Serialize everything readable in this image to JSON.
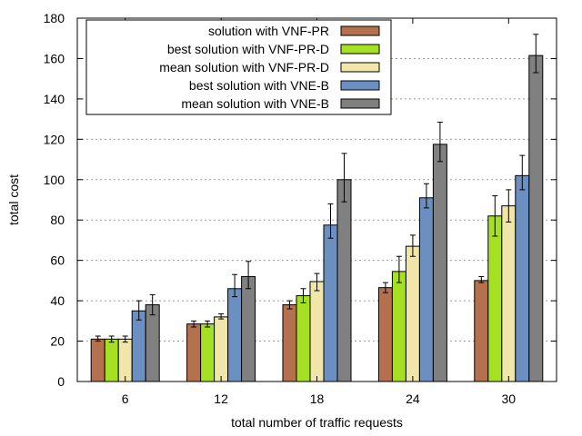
{
  "chart_data": {
    "type": "bar",
    "xlabel": "total number of traffic requests",
    "ylabel": "total cost",
    "ylim": [
      0,
      180
    ],
    "yticks": [
      0,
      20,
      40,
      60,
      80,
      100,
      120,
      140,
      160,
      180
    ],
    "grid": "horizontal dotted",
    "legend_position": "top-left",
    "categories": [
      "6",
      "12",
      "18",
      "24",
      "30"
    ],
    "series": [
      {
        "name": "solution with VNF-PR",
        "color": "#b5714e",
        "values": [
          21,
          28.5,
          38,
          46.5,
          50
        ],
        "error_low": [
          20,
          27,
          36,
          44,
          49
        ],
        "error_high": [
          22.5,
          30,
          40,
          49,
          52
        ]
      },
      {
        "name": "best solution with VNF-PR-D",
        "color": "#a6e022",
        "values": [
          21,
          28.5,
          42.5,
          54.5,
          82
        ],
        "error_low": [
          19.5,
          27,
          39,
          49,
          72
        ],
        "error_high": [
          22.5,
          30,
          46,
          62,
          92
        ]
      },
      {
        "name": "mean solution with VNF-PR-D",
        "color": "#f0e6aa",
        "values": [
          21,
          32,
          49.5,
          67,
          87
        ],
        "error_low": [
          19.5,
          31,
          45,
          62,
          79
        ],
        "error_high": [
          22.5,
          33.5,
          53.5,
          72.5,
          95
        ]
      },
      {
        "name": "best solution with VNE-B",
        "color": "#6a8fc0",
        "values": [
          35,
          46,
          77.5,
          91,
          102
        ],
        "error_low": [
          30.5,
          42,
          71,
          86,
          95
        ],
        "error_high": [
          40,
          53,
          88,
          98,
          112
        ]
      },
      {
        "name": "mean solution with VNE-B",
        "color": "#808080",
        "values": [
          38,
          52,
          100,
          117.5,
          161.5
        ],
        "error_low": [
          33,
          46,
          89,
          109,
          153
        ],
        "error_high": [
          43,
          59.5,
          113,
          128.5,
          172
        ]
      }
    ]
  }
}
